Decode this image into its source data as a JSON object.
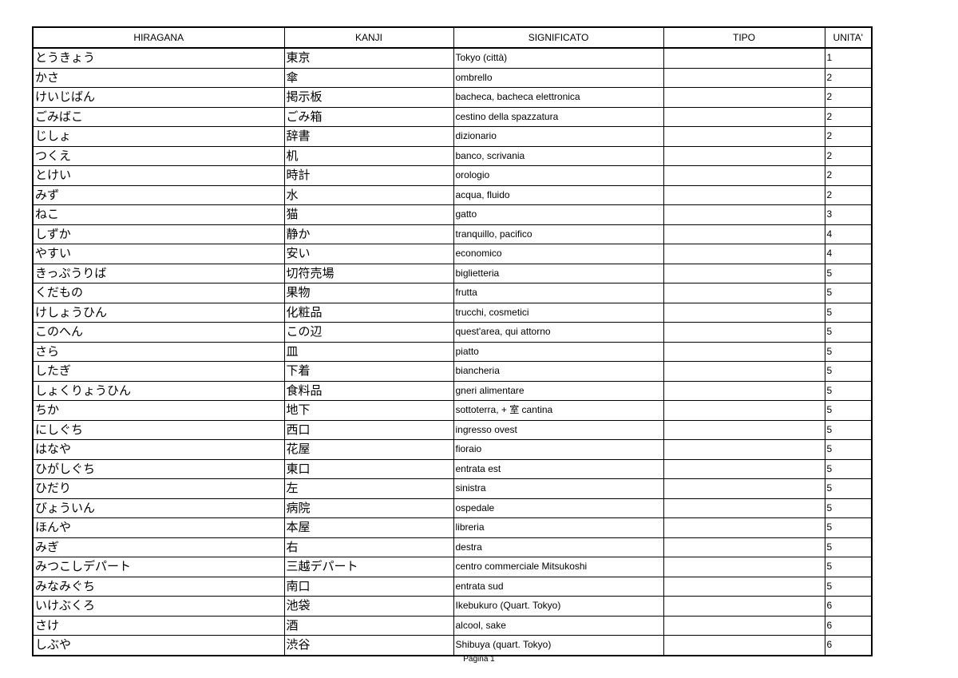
{
  "table": {
    "headers": [
      "HIRAGANA",
      "KANJI",
      "SIGNIFICATO",
      "TIPO",
      "UNITA'"
    ],
    "rows": [
      [
        "とうきょう",
        "東京",
        "Tokyo (città)",
        "",
        "1"
      ],
      [
        "かさ",
        "傘",
        "ombrello",
        "",
        "2"
      ],
      [
        "けいじばん",
        "掲示板",
        "bacheca, bacheca elettronica",
        "",
        "2"
      ],
      [
        "ごみばこ",
        "ごみ箱",
        "cestino della spazzatura",
        "",
        "2"
      ],
      [
        "じしょ",
        "辞書",
        "dizionario",
        "",
        "2"
      ],
      [
        "つくえ",
        "机",
        "banco, scrivania",
        "",
        "2"
      ],
      [
        "とけい",
        "時計",
        "orologio",
        "",
        "2"
      ],
      [
        "みず",
        "水",
        "acqua, fluido",
        "",
        "2"
      ],
      [
        "ねこ",
        "猫",
        "gatto",
        "",
        "3"
      ],
      [
        "しずか",
        "静か",
        "tranquillo, pacifico",
        "",
        "4"
      ],
      [
        "やすい",
        "安い",
        "economico",
        "",
        "4"
      ],
      [
        "きっぷうりば",
        "切符売場",
        "biglietteria",
        "",
        "5"
      ],
      [
        "くだもの",
        "果物",
        "frutta",
        "",
        "5"
      ],
      [
        "けしょうひん",
        "化粧品",
        "trucchi, cosmetici",
        "",
        "5"
      ],
      [
        "このへん",
        "この辺",
        "quest'area, qui attorno",
        "",
        "5"
      ],
      [
        "さら",
        "皿",
        "piatto",
        "",
        "5"
      ],
      [
        "したぎ",
        "下着",
        "biancheria",
        "",
        "5"
      ],
      [
        "しょくりょうひん",
        "食料品",
        "gneri alimentare",
        "",
        "5"
      ],
      [
        "ちか",
        "地下",
        "sottoterra, + 室 cantina",
        "",
        "5"
      ],
      [
        "にしぐち",
        "西口",
        "ingresso ovest",
        "",
        "5"
      ],
      [
        "はなや",
        "花屋",
        "fioraio",
        "",
        "5"
      ],
      [
        "ひがしぐち",
        "東口",
        "entrata est",
        "",
        "5"
      ],
      [
        "ひだり",
        "左",
        "sinistra",
        "",
        "5"
      ],
      [
        "びょういん",
        "病院",
        "ospedale",
        "",
        "5"
      ],
      [
        "ほんや",
        "本屋",
        "libreria",
        "",
        "5"
      ],
      [
        "みぎ",
        "右",
        "destra",
        "",
        "5"
      ],
      [
        "みつこしデパート",
        "三越デパート",
        "centro commerciale Mitsukoshi",
        "",
        "5"
      ],
      [
        "みなみぐち",
        "南口",
        "entrata sud",
        "",
        "5"
      ],
      [
        "いけぶくろ",
        "池袋",
        "Ikebukuro (Quart. Tokyo)",
        "",
        "6"
      ],
      [
        "さけ",
        "酒",
        "alcool, sake",
        "",
        "6"
      ],
      [
        "しぶや",
        "渋谷",
        "Shibuya (quart. Tokyo)",
        "",
        "6"
      ]
    ]
  },
  "footer": {
    "page_label": "Pagina 1"
  }
}
